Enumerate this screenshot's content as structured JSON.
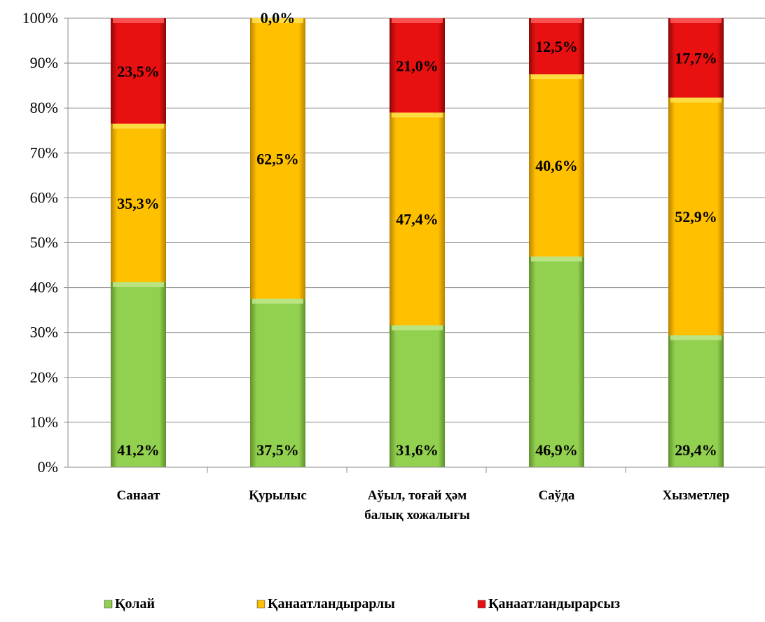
{
  "chart_data": {
    "type": "bar",
    "stacked": true,
    "percent_stacked": true,
    "categories": [
      [
        "Санаат"
      ],
      [
        "Қурылыс"
      ],
      [
        "Аўыл, тоғай ҳәм",
        "балық хожалығы"
      ],
      [
        "Саўда"
      ],
      [
        "Хызметлер"
      ]
    ],
    "series": [
      {
        "name": "Қолай",
        "values": [
          41.2,
          37.5,
          31.6,
          46.9,
          29.4
        ],
        "labels": [
          "41,2%",
          "37,5%",
          "31,6%",
          "46,9%",
          "29,4%"
        ],
        "color": "#92D050"
      },
      {
        "name": "Қанаатландырарлы",
        "values": [
          35.3,
          62.5,
          47.4,
          40.6,
          52.9
        ],
        "labels": [
          "35,3%",
          "62,5%",
          "47,4%",
          "40,6%",
          "52,9%"
        ],
        "color": "#FFC000"
      },
      {
        "name": "Қанаатландырарсыз",
        "values": [
          23.5,
          0.0,
          21.0,
          12.5,
          17.7
        ],
        "labels": [
          "23,5%",
          "0,0%",
          "21,0%",
          "12,5%",
          "17,7%"
        ],
        "color": "#E81010"
      }
    ],
    "y_ticks": [
      "0%",
      "10%",
      "20%",
      "30%",
      "40%",
      "50%",
      "60%",
      "70%",
      "80%",
      "90%",
      "100%"
    ],
    "ylim": [
      0,
      100
    ],
    "grid": true,
    "legend_position": "bottom"
  }
}
